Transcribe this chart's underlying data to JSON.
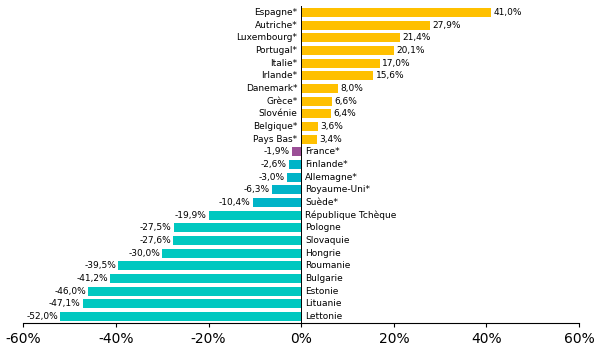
{
  "countries": [
    "Espagne*",
    "Autriche*",
    "Luxembourg*",
    "Portugal*",
    "Italie*",
    "Irlande*",
    "Danemark*",
    "Grèce*",
    "Slovénie",
    "Belgique*",
    "Pays Bas*",
    "France*",
    "Finlande*",
    "Allemagne*",
    "Royaume-Uni*",
    "Suède*",
    "République Tchèque",
    "Pologne",
    "Slovaquie",
    "Hongrie",
    "Roumanie",
    "Bulgarie",
    "Estonie",
    "Lituanie",
    "Lettonie"
  ],
  "values": [
    41.0,
    27.9,
    21.4,
    20.1,
    17.0,
    15.6,
    8.0,
    6.6,
    6.4,
    3.6,
    3.4,
    -1.9,
    -2.6,
    -3.0,
    -6.3,
    -10.4,
    -19.9,
    -27.5,
    -27.6,
    -30.0,
    -39.5,
    -41.2,
    -46.0,
    -47.1,
    -52.0
  ],
  "colors": [
    "#FFC000",
    "#FFC000",
    "#FFC000",
    "#FFC000",
    "#FFC000",
    "#FFC000",
    "#FFC000",
    "#FFC000",
    "#FFC000",
    "#FFC000",
    "#FFC000",
    "#9B4F96",
    "#00B4C8",
    "#00B4C8",
    "#00B4C8",
    "#00B4C8",
    "#00C8C0",
    "#00C8C0",
    "#00C8C0",
    "#00C8C0",
    "#00C8C0",
    "#00C8C0",
    "#00C8C0",
    "#00C8C0",
    "#00C8C0"
  ],
  "xlim": [
    -60,
    60
  ],
  "xticks": [
    -60,
    -40,
    -20,
    0,
    20,
    40,
    60
  ],
  "xtick_labels": [
    "-60%",
    "-40%",
    "-20%",
    "0%",
    "20%",
    "40%",
    "60%"
  ],
  "bar_height": 0.72,
  "label_fontsize": 6.5,
  "tick_fontsize": 7
}
